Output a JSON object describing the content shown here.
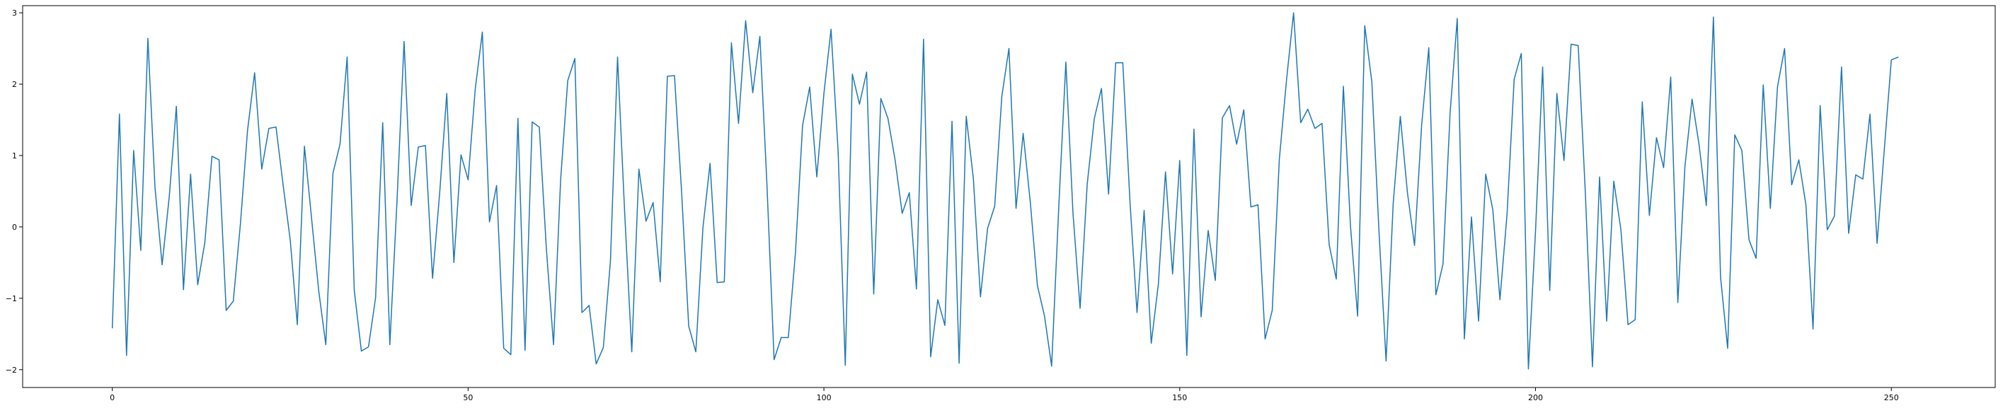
{
  "chart_data": {
    "type": "line",
    "title": "",
    "xlabel": "",
    "ylabel": "",
    "xlim": [
      -12.6,
      264.6
    ],
    "ylim": [
      -2.25,
      3.1
    ],
    "grid": false,
    "legend": "none",
    "xticks": [
      0,
      50,
      100,
      150,
      200,
      250
    ],
    "yticks": [
      -2,
      -1,
      0,
      1,
      2,
      3
    ],
    "series_color": "#1f77b4",
    "series": [
      {
        "values": [
          -1.42,
          1.58,
          -1.8,
          1.07,
          -0.33,
          2.64,
          0.55,
          -0.53,
          0.42,
          1.69,
          -0.88,
          0.74,
          -0.81,
          -0.22,
          0.99,
          0.94,
          -1.17,
          -1.04,
          0.04,
          1.35,
          2.16,
          0.81,
          1.38,
          1.4,
          0.59,
          -0.18,
          -1.37,
          1.13,
          0.12,
          -0.89,
          -1.65,
          0.75,
          1.16,
          2.38,
          -0.89,
          -1.74,
          -1.68,
          -0.99,
          1.46,
          -1.65,
          0.35,
          2.6,
          0.3,
          1.12,
          1.14,
          -0.72,
          0.47,
          1.87,
          -0.5,
          1.01,
          0.66,
          1.93,
          2.73,
          0.07,
          0.58,
          -1.7,
          -1.79,
          1.52,
          -1.73,
          1.47,
          1.4,
          -0.31,
          -1.65,
          0.66,
          2.05,
          2.36,
          -1.2,
          -1.1,
          -1.92,
          -1.69,
          -0.48,
          2.38,
          0.2,
          -1.75,
          0.81,
          0.08,
          0.34,
          -0.77,
          2.11,
          2.12,
          0.49,
          -1.39,
          -1.75,
          -0.01,
          0.89,
          -0.78,
          -0.77,
          2.58,
          1.45,
          2.89,
          1.88,
          2.67,
          0.58,
          -1.86,
          -1.55,
          -1.55,
          -0.36,
          1.42,
          1.96,
          0.7,
          1.87,
          2.77,
          1.05,
          -1.94,
          2.14,
          1.72,
          2.17,
          -0.94,
          1.8,
          1.52,
          0.94,
          0.19,
          0.48,
          -0.87,
          2.63,
          -1.82,
          -1.02,
          -1.38,
          1.48,
          -1.91,
          1.55,
          0.68,
          -0.98,
          -0.02,
          0.29,
          1.83,
          2.5,
          0.26,
          1.31,
          0.35,
          -0.82,
          -1.25,
          -1.95,
          0.27,
          2.31,
          0.19,
          -1.14,
          0.6,
          1.52,
          1.94,
          0.46,
          2.3,
          2.3,
          0.37,
          -1.2,
          0.23,
          -1.63,
          -0.8,
          0.77,
          -0.66,
          0.93,
          -1.8,
          1.37,
          -1.26,
          -0.05,
          -0.75,
          1.53,
          1.7,
          1.16,
          1.64,
          0.28,
          0.31,
          -1.57,
          -1.17,
          0.95,
          2.05,
          3.0,
          1.46,
          1.65,
          1.38,
          1.45,
          -0.25,
          -0.73,
          1.97,
          0.01,
          -1.25,
          2.82,
          2.03,
          -0.06,
          -1.88,
          0.33,
          1.55,
          0.48,
          -0.26,
          1.43,
          2.51,
          -0.95,
          -0.52,
          1.6,
          2.92,
          -1.57,
          0.14,
          -1.32,
          0.74,
          0.24,
          -1.02,
          0.18,
          2.07,
          2.43,
          -1.99,
          -0.06,
          2.24,
          -0.89,
          1.87,
          0.93,
          2.56,
          2.54,
          0.48,
          -1.96,
          0.7,
          -1.32,
          0.64,
          -0.04,
          -1.37,
          -1.3,
          1.75,
          0.16,
          1.25,
          0.83,
          2.1,
          -1.06,
          0.85,
          1.79,
          1.14,
          0.3,
          2.94,
          -0.7,
          -1.7,
          1.29,
          1.07,
          -0.18,
          -0.44,
          1.99,
          0.26,
          1.96,
          2.5,
          0.59,
          0.94,
          0.31,
          -1.43,
          1.7,
          -0.04,
          0.15,
          2.24,
          -0.09,
          0.73,
          0.67,
          1.58,
          -0.23,
          1.07,
          2.34,
          2.38
        ]
      }
    ]
  }
}
